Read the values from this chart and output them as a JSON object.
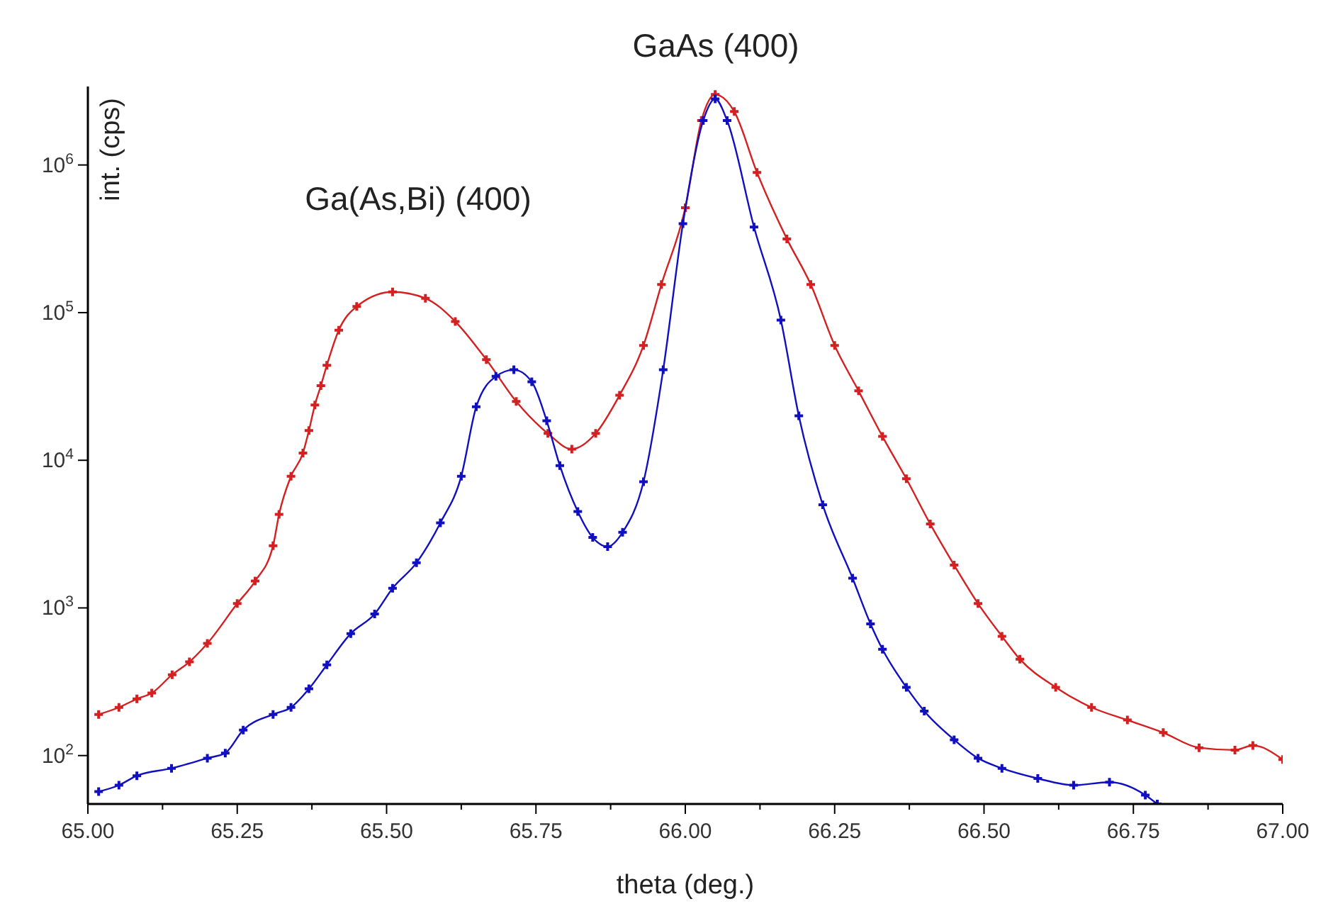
{
  "chart_data": {
    "type": "line",
    "xlabel": "theta (deg.)",
    "ylabel": "int. (cps)",
    "log": "y",
    "grid": false,
    "marker": "cross",
    "line_style": "solid",
    "annotations": [
      "GaAs (400)",
      "Ga(As,Bi) (400)"
    ],
    "xlim": [
      65,
      67
    ],
    "xticks": [
      {
        "value": 65,
        "label": "65.00"
      },
      {
        "value": 65.125,
        "label": null
      },
      {
        "value": 65.25,
        "label": "65.25"
      },
      {
        "value": 65.375,
        "label": null
      },
      {
        "value": 65.5,
        "label": "65.50"
      },
      {
        "value": 65.625,
        "label": null
      },
      {
        "value": 65.75,
        "label": "65.75"
      },
      {
        "value": 65.875,
        "label": null
      },
      {
        "value": 66,
        "label": "66.00"
      },
      {
        "value": 66.125,
        "label": null
      },
      {
        "value": 66.25,
        "label": "66.25"
      },
      {
        "value": 66.375,
        "label": null
      },
      {
        "value": 66.5,
        "label": "66.50"
      },
      {
        "value": 66.625,
        "label": null
      },
      {
        "value": 66.75,
        "label": "66.75"
      },
      {
        "value": 66.875,
        "label": null
      },
      {
        "value": 67,
        "label": "67.00"
      }
    ],
    "ylim": [
      47,
      3400000
    ],
    "yticks": [
      {
        "value": 100,
        "label": "10$^{2}$"
      },
      {
        "value": 1000,
        "label": "10$^{3}$"
      },
      {
        "value": 10000,
        "label": "10$^{4}$"
      },
      {
        "value": 100000,
        "label": "10$^{5}$"
      },
      {
        "value": 1000000,
        "label": "10$^{6}$"
      }
    ],
    "series": [
      {
        "color": "#d42020",
        "x": [
          65.018,
          65.052,
          65.082,
          65.107,
          65.141,
          65.17,
          65.2,
          65.25,
          65.28,
          65.31,
          65.32,
          65.34,
          65.36,
          65.37,
          65.38,
          65.39,
          65.4,
          65.42,
          65.45,
          65.51,
          65.565,
          65.615,
          65.667,
          65.717,
          65.77,
          65.81,
          65.85,
          65.89,
          65.93,
          65.96,
          66.0,
          66.027,
          66.05,
          66.082,
          66.12,
          66.17,
          66.21,
          66.25,
          66.29,
          66.33,
          66.37,
          66.41,
          66.45,
          66.49,
          66.53,
          66.56,
          66.62,
          66.68,
          66.74,
          66.8,
          66.86,
          66.92,
          66.95,
          67.0
        ],
        "values": [
          190,
          212,
          242,
          265,
          353,
          431,
          575,
          1070,
          1520,
          2640,
          4300,
          7800,
          11200,
          15900,
          23700,
          32000,
          44000,
          76000,
          110000,
          138000,
          125000,
          87000,
          48000,
          25000,
          15200,
          11900,
          15200,
          27600,
          60000,
          155000,
          513000,
          2000000,
          3000000,
          2300000,
          890000,
          316000,
          155000,
          60000,
          29500,
          14500,
          7500,
          3700,
          1950,
          1070,
          643,
          450,
          290,
          212,
          174,
          143,
          113,
          109,
          117,
          94
        ]
      },
      {
        "color": "#1010c0",
        "x": [
          65.018,
          65.052,
          65.082,
          65.14,
          65.2,
          65.23,
          65.26,
          65.31,
          65.34,
          65.37,
          65.4,
          65.44,
          65.48,
          65.51,
          65.55,
          65.59,
          65.625,
          65.65,
          65.683,
          65.713,
          65.743,
          65.768,
          65.79,
          65.82,
          65.845,
          65.87,
          65.895,
          65.93,
          65.963,
          65.996,
          66.03,
          66.05,
          66.07,
          66.115,
          66.16,
          66.19,
          66.23,
          66.28,
          66.31,
          66.33,
          66.37,
          66.4,
          66.45,
          66.49,
          66.53,
          66.59,
          66.65,
          66.71,
          66.77,
          66.79
        ],
        "values": [
          57,
          63,
          73,
          82,
          96,
          104,
          149,
          190,
          212,
          283,
          412,
          670,
          910,
          1360,
          2020,
          3770,
          7800,
          23000,
          37000,
          41000,
          34000,
          18500,
          9200,
          4500,
          3000,
          2600,
          3250,
          7150,
          41000,
          400000,
          2000000,
          2800000,
          2000000,
          380000,
          89000,
          20000,
          5000,
          1590,
          780,
          525,
          290,
          200,
          128,
          96,
          82,
          70,
          63,
          66,
          54,
          47
        ]
      }
    ]
  }
}
